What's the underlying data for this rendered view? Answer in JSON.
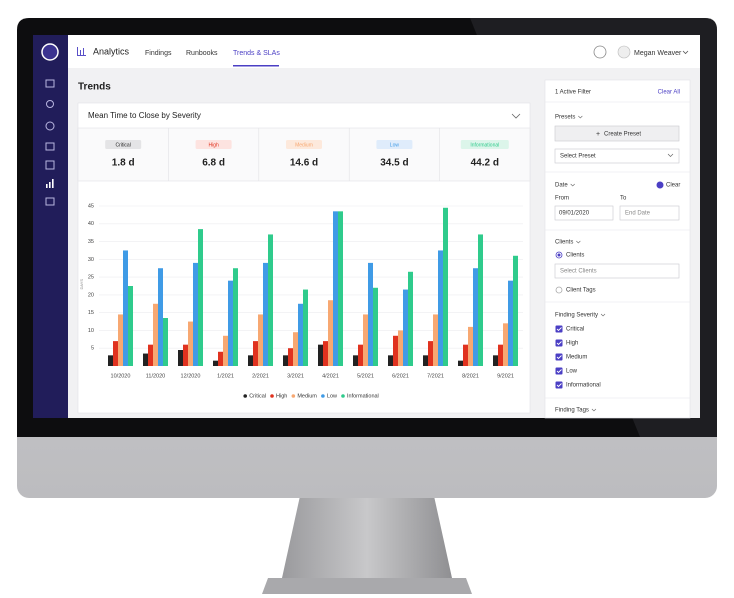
{
  "nav": {
    "brand": "Analytics",
    "tabs": [
      "Findings",
      "Runbooks",
      "Trends & SLAs"
    ],
    "user": "Megan Weaver"
  },
  "page_title": "Trends",
  "summary": [
    {
      "label": "Critical",
      "value": "1.8 d"
    },
    {
      "label": "High",
      "value": "6.8 d"
    },
    {
      "label": "Medium",
      "value": "14.6 d"
    },
    {
      "label": "Low",
      "value": "34.5 d"
    },
    {
      "label": "Informational",
      "value": "44.2 d"
    }
  ],
  "chart_data": {
    "type": "bar",
    "title": "Mean Time to Close by Severity",
    "y_label": "DAYS",
    "categories": [
      "10/2020",
      "11/2020",
      "12/2020",
      "1/2021",
      "2/2021",
      "3/2021",
      "4/2021",
      "5/2021",
      "6/2021",
      "7/2021",
      "8/2021",
      "9/2021"
    ],
    "series": [
      {
        "name": "Critical",
        "color": "#222222",
        "values": [
          3,
          3.5,
          4.5,
          1.5,
          3,
          3,
          6,
          3,
          3,
          3,
          1.5,
          3
        ]
      },
      {
        "name": "High",
        "color": "#e0321f",
        "values": [
          7,
          6,
          6,
          4,
          7,
          5,
          7,
          6,
          8.5,
          7,
          6,
          6
        ]
      },
      {
        "name": "Medium",
        "color": "#f7a872",
        "values": [
          14.5,
          17.5,
          12.5,
          8.5,
          14.5,
          9.5,
          18.5,
          14.5,
          10,
          14.5,
          11,
          12
        ]
      },
      {
        "name": "Low",
        "color": "#3f9be6",
        "values": [
          32.5,
          27.5,
          29,
          24,
          29,
          17.5,
          43.5,
          29,
          21.5,
          32.5,
          27.5,
          24
        ]
      },
      {
        "name": "Informational",
        "color": "#2fcb8c",
        "values": [
          22.5,
          13.5,
          38.5,
          27.5,
          37,
          21.5,
          43.5,
          22,
          26.5,
          44.5,
          37,
          31
        ]
      }
    ],
    "ylim": [
      0,
      46
    ],
    "yticks": [
      5,
      10,
      15,
      20,
      25,
      30,
      35,
      40,
      45
    ],
    "grid": true,
    "legend": "bottom"
  },
  "filters": {
    "active": "1 Active Filter",
    "clear_all": "Clear All",
    "presets_label": "Presets",
    "create_preset": "Create Preset",
    "select_preset": "Select Preset",
    "date_label": "Date",
    "clear": "Clear",
    "from": "From",
    "to": "To",
    "from_value": "09/01/2020",
    "to_placeholder": "End Date",
    "clients_label": "Clients",
    "clients_option": "Clients",
    "select_clients": "Select Clients",
    "client_tags": "Client Tags",
    "finding_severity": "Finding Severity",
    "severities": [
      "Critical",
      "High",
      "Medium",
      "Low",
      "Informational"
    ],
    "finding_tags": "Finding Tags"
  }
}
